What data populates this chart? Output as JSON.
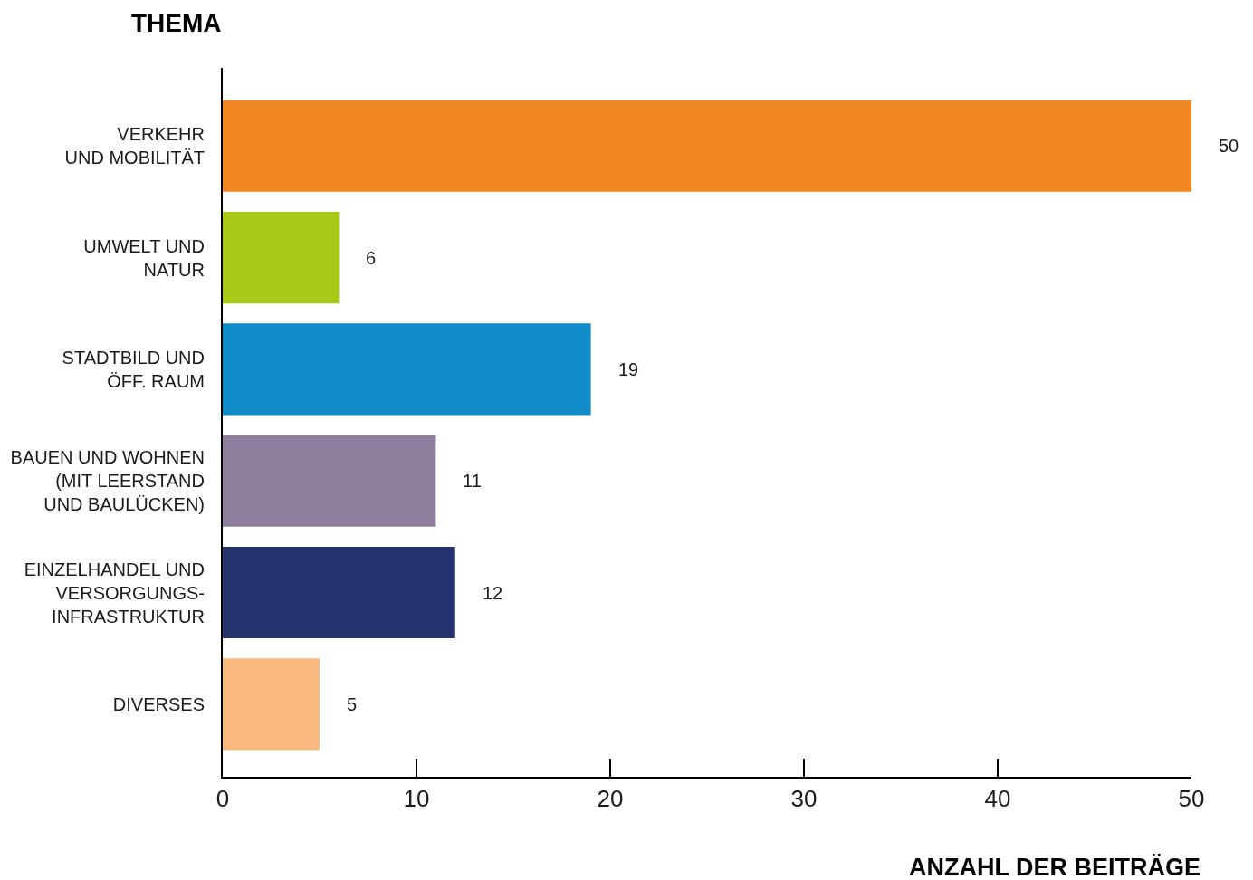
{
  "chart_data": {
    "type": "bar",
    "orientation": "horizontal",
    "title": "THEMA",
    "xlabel": "ANZAHL DER BEITRÄGE",
    "categories": [
      "VERKEHR\nUND MOBILITÄT",
      "UMWELT UND\nNATUR",
      "STADTBILD UND\nÖFF. RAUM",
      "BAUEN UND WOHNEN\n(MIT LEERSTAND\nUND BAULÜCKEN)",
      "EINZELHANDEL UND\nVERSORGUNGS-\nINFRASTRUKTUR",
      "DIVERSES"
    ],
    "values": [
      50,
      6,
      19,
      11,
      12,
      5
    ],
    "colors": [
      "#f08722",
      "#a8c916",
      "#0f8bc9",
      "#8f7f9e",
      "#27336e",
      "#f8b87e"
    ],
    "xlim": [
      0,
      50
    ],
    "xticks": [
      0,
      10,
      20,
      30,
      40,
      50
    ],
    "data_labels": true
  }
}
